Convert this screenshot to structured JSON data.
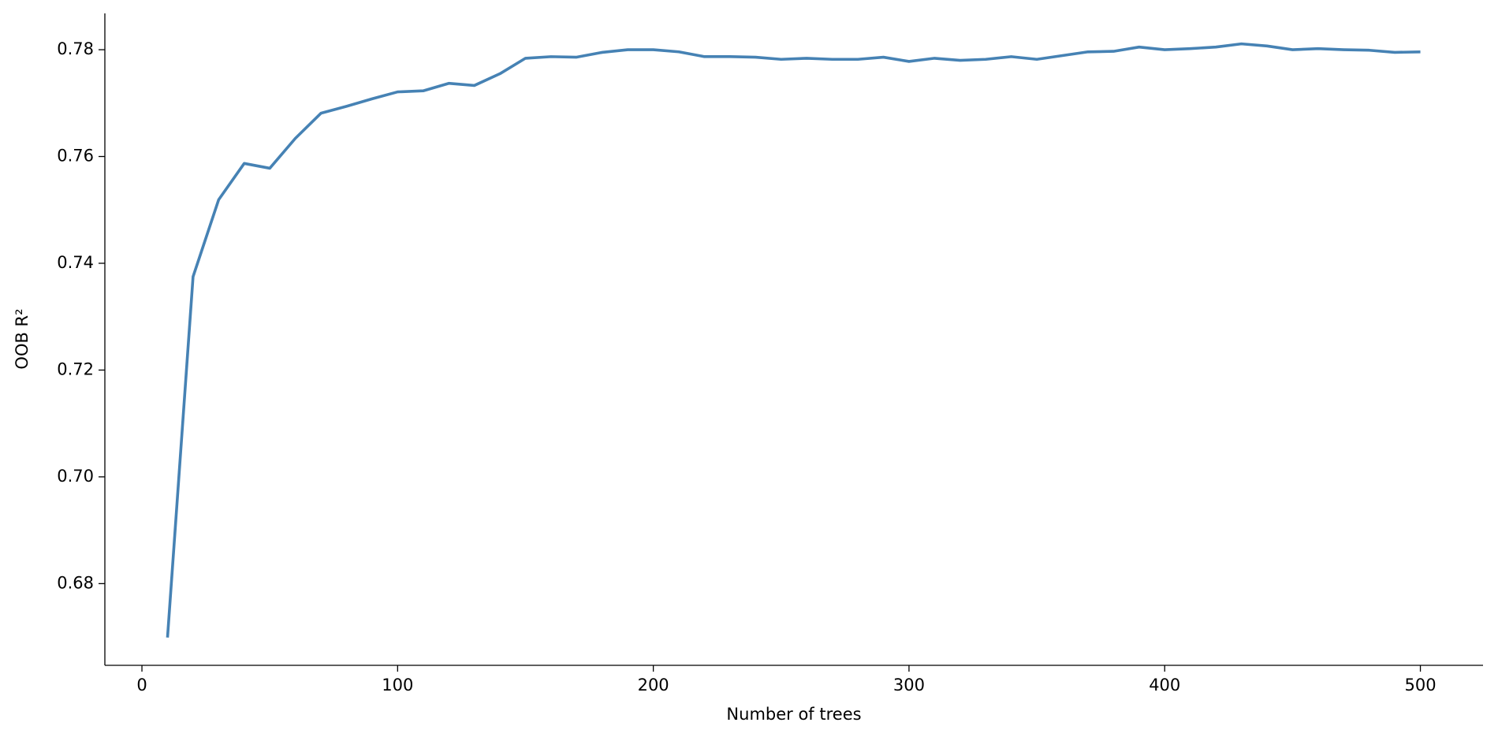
{
  "chart_data": {
    "type": "line",
    "x_label": "Number of trees",
    "y_label": "OOB R²",
    "x": [
      10,
      20,
      30,
      40,
      50,
      60,
      70,
      80,
      90,
      100,
      110,
      120,
      130,
      140,
      150,
      160,
      170,
      180,
      190,
      200,
      210,
      220,
      230,
      240,
      250,
      260,
      270,
      280,
      290,
      300,
      310,
      320,
      330,
      340,
      350,
      360,
      370,
      380,
      390,
      400,
      410,
      420,
      430,
      440,
      450,
      460,
      470,
      480,
      490,
      500
    ],
    "series": [
      {
        "name": "OOB R²",
        "color": "#4682b4",
        "values": [
          0.6699,
          0.7375,
          0.7519,
          0.7587,
          0.7578,
          0.7634,
          0.7681,
          0.7694,
          0.7708,
          0.7721,
          0.7723,
          0.7737,
          0.7733,
          0.7755,
          0.7784,
          0.7787,
          0.7786,
          0.7795,
          0.78,
          0.78,
          0.7796,
          0.7787,
          0.7787,
          0.7786,
          0.7782,
          0.7784,
          0.7782,
          0.7782,
          0.7786,
          0.7778,
          0.7784,
          0.778,
          0.7782,
          0.7787,
          0.7782,
          0.7789,
          0.7796,
          0.7797,
          0.7805,
          0.78,
          0.7802,
          0.7805,
          0.7811,
          0.7807,
          0.78,
          0.7802,
          0.78,
          0.7799,
          0.7795,
          0.7796
        ]
      }
    ],
    "xlim": [
      -14.5,
      524.5
    ],
    "ylim": [
      0.6647,
      0.7868
    ],
    "xticks": [
      0,
      100,
      200,
      300,
      400,
      500
    ],
    "yticks": [
      0.68,
      {
        "value": 0.7,
        "label": "0.70"
      },
      0.72,
      0.74,
      0.76,
      0.78
    ],
    "grid": false
  }
}
